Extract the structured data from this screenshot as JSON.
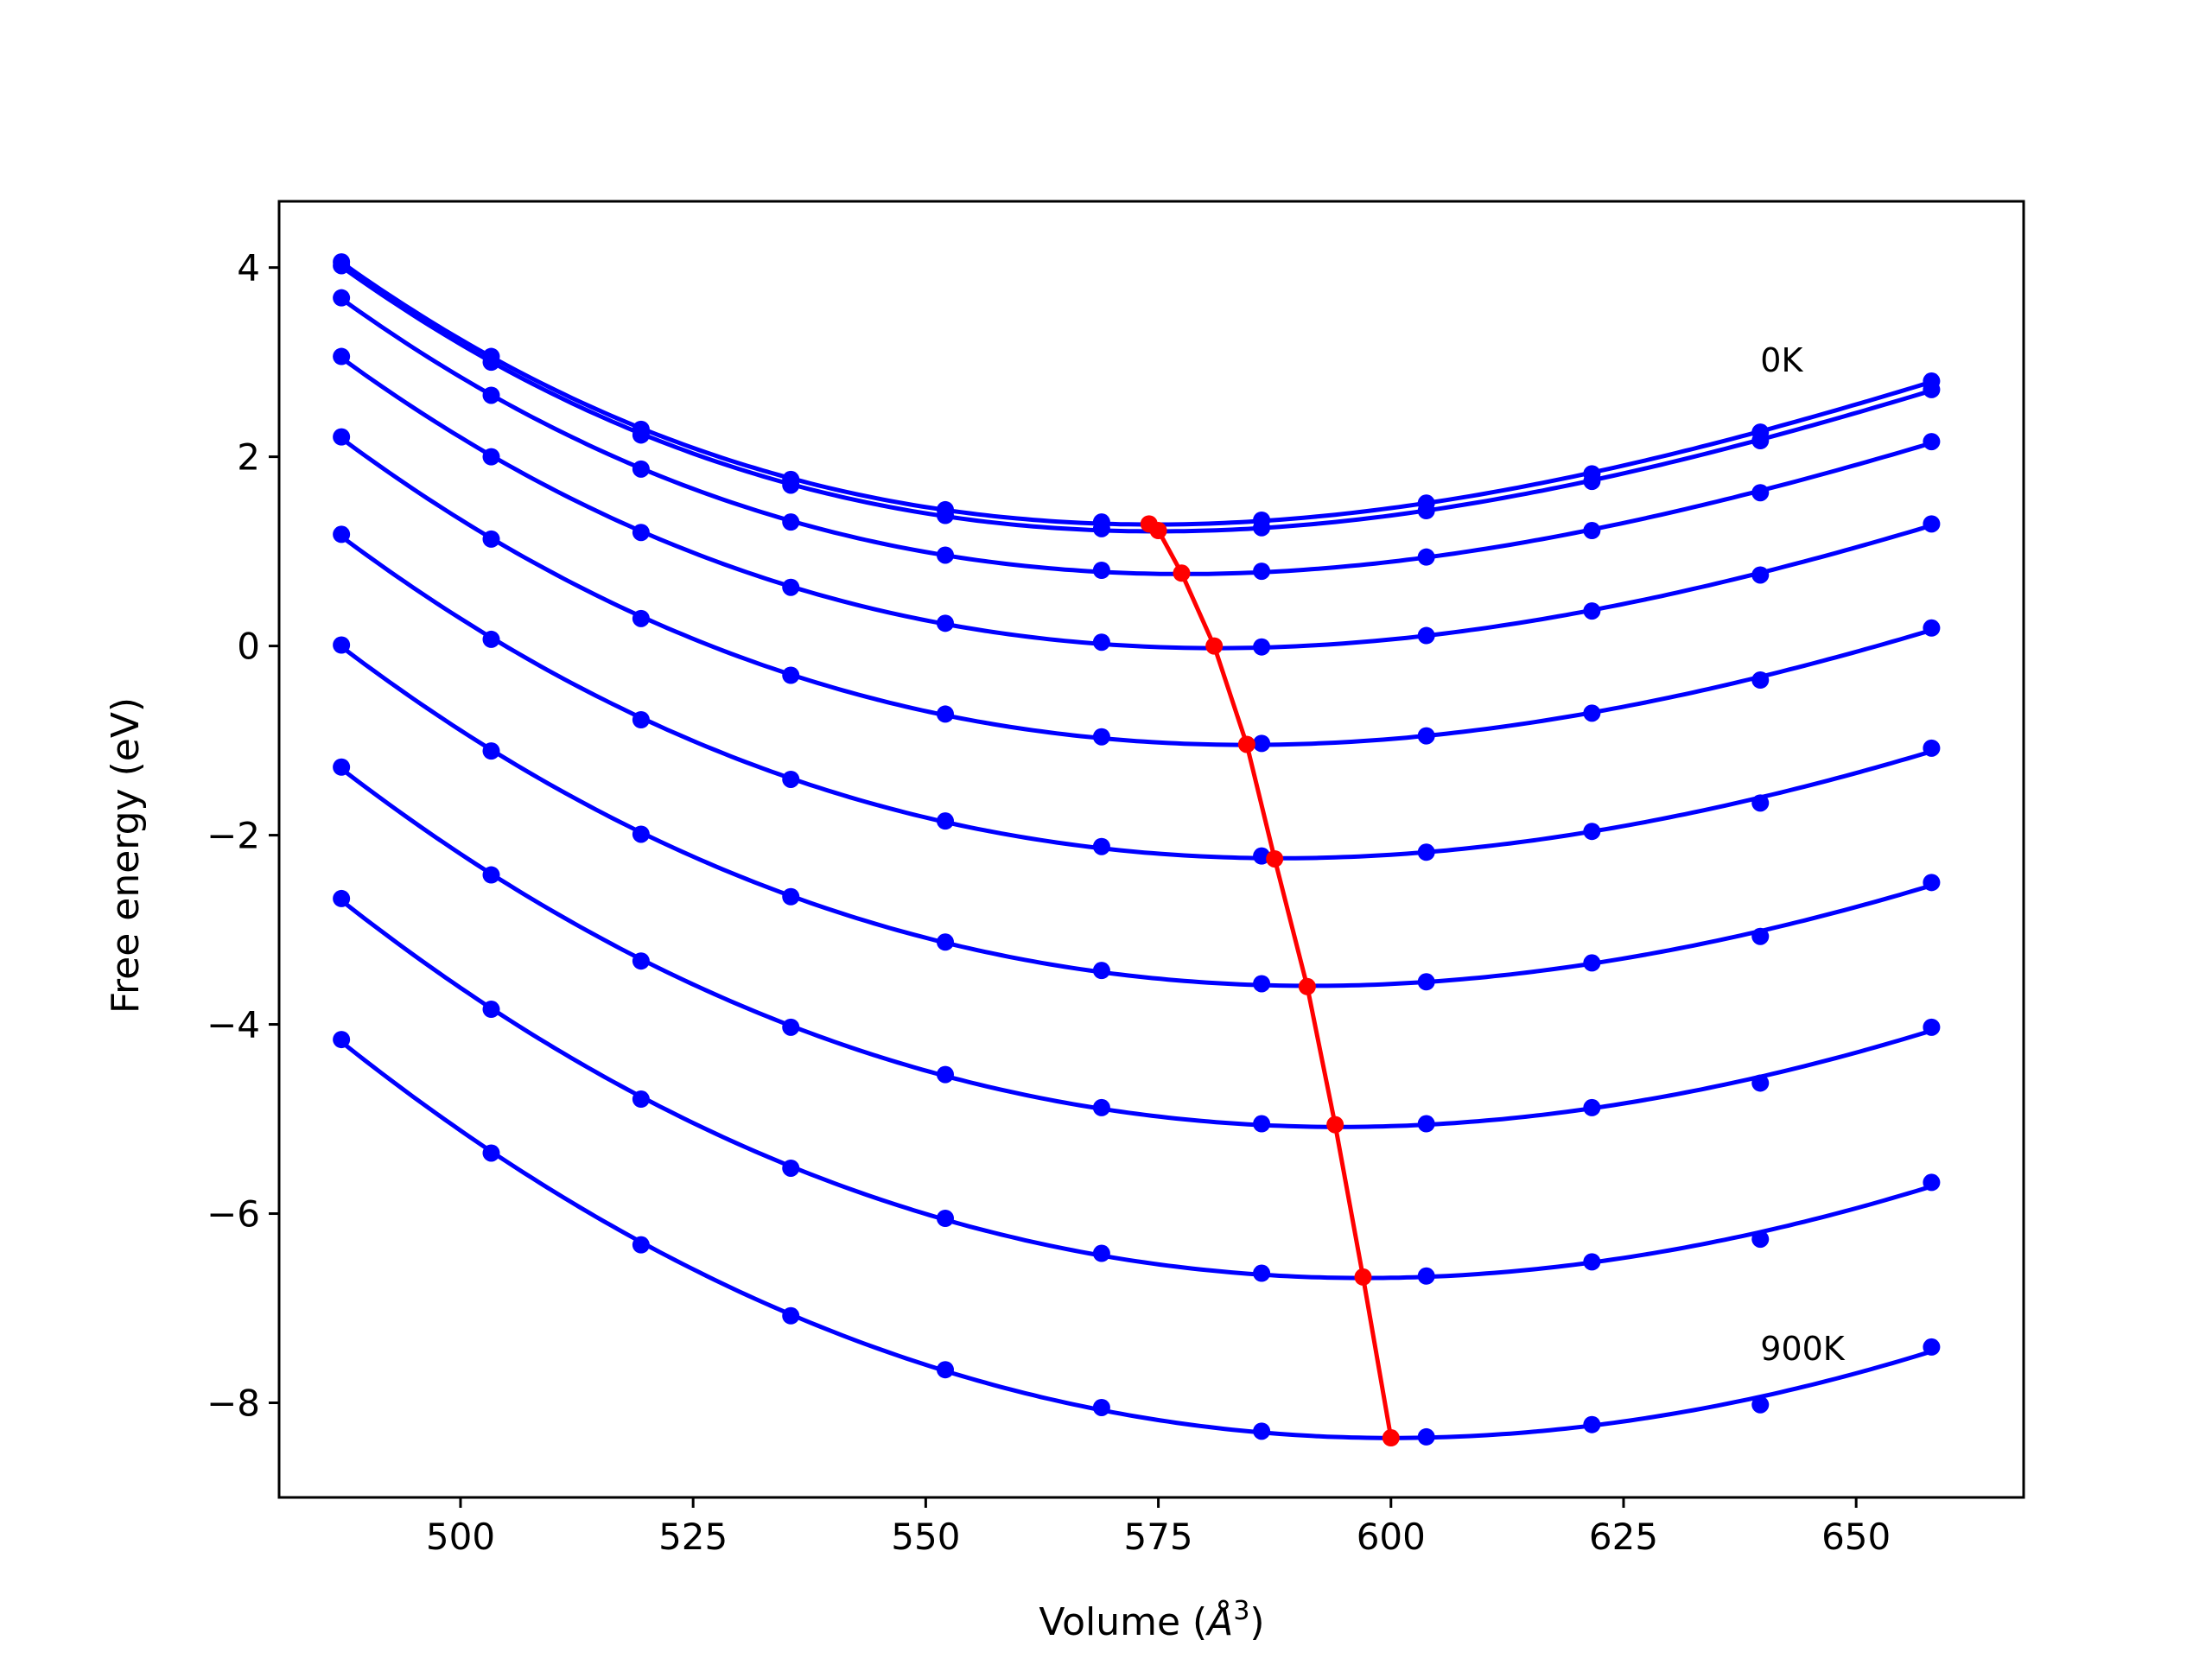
{
  "chart_data": {
    "type": "line",
    "xlabel": "Volume (Å³)",
    "xlabel_base": "Volume (",
    "xlabel_unit": "Å",
    "xlabel_exp": "3",
    "xlabel_close": ")",
    "ylabel": "Free energy (eV)",
    "xlim": [
      480.5,
      668
    ],
    "ylim": [
      -9,
      4.7
    ],
    "xticks": [
      500,
      525,
      550,
      575,
      600,
      625,
      650
    ],
    "yticks": [
      -8,
      -6,
      -4,
      -2,
      0,
      2,
      4
    ],
    "ytick_labels": [
      "−8",
      "−6",
      "−4",
      "−2",
      "0",
      "2",
      "4"
    ],
    "grid": false,
    "legend": "none",
    "annotations": [
      {
        "text": "0K",
        "x": 639.7,
        "y": 2.9
      },
      {
        "text": "900K",
        "x": 639.7,
        "y": -7.55
      }
    ],
    "colors": {
      "curves": "#0000ff",
      "equilibrium": "#ff0000",
      "axes": "#000000"
    },
    "volumes": [
      487.2,
      503.3,
      519.4,
      535.5,
      552.1,
      568.9,
      586.1,
      603.8,
      621.6,
      639.7,
      658.1
    ],
    "series": [
      {
        "values": [
          4.06,
          3.06,
          2.29,
          1.76,
          1.44,
          1.31,
          1.33,
          1.51,
          1.82,
          2.26,
          2.8
        ]
      },
      {
        "values": [
          4.02,
          3.0,
          2.23,
          1.7,
          1.38,
          1.24,
          1.25,
          1.43,
          1.74,
          2.17,
          2.71
        ]
      },
      {
        "values": [
          3.68,
          2.65,
          1.87,
          1.31,
          0.96,
          0.8,
          0.79,
          0.94,
          1.22,
          1.62,
          2.16
        ]
      },
      {
        "values": [
          3.06,
          2.0,
          1.2,
          0.62,
          0.24,
          0.04,
          -0.01,
          0.11,
          0.37,
          0.75,
          1.29
        ]
      },
      {
        "values": [
          2.21,
          1.13,
          0.29,
          -0.31,
          -0.72,
          -0.96,
          -1.03,
          -0.95,
          -0.71,
          -0.36,
          0.19
        ]
      },
      {
        "values": [
          1.18,
          0.07,
          -0.78,
          -1.41,
          -1.85,
          -2.12,
          -2.22,
          -2.18,
          -1.96,
          -1.66,
          -1.08
        ]
      },
      {
        "values": [
          0.01,
          -1.11,
          -1.99,
          -2.65,
          -3.13,
          -3.43,
          -3.57,
          -3.55,
          -3.35,
          -3.07,
          -2.5
        ]
      },
      {
        "values": [
          -1.28,
          -2.42,
          -3.33,
          -4.03,
          -4.53,
          -4.88,
          -5.05,
          -5.05,
          -4.88,
          -4.62,
          -4.03
        ]
      },
      {
        "values": [
          -2.67,
          -3.84,
          -4.79,
          -5.52,
          -6.05,
          -6.42,
          -6.63,
          -6.66,
          -6.51,
          -6.27,
          -5.67
        ]
      },
      {
        "values": [
          -4.16,
          -5.36,
          -6.33,
          -7.08,
          -7.65,
          -8.05,
          -8.3,
          -8.36,
          -8.23,
          -8.02,
          -7.41
        ]
      }
    ],
    "equilibrium": {
      "x": [
        574.0,
        575.0,
        577.5,
        581.0,
        584.5,
        587.5,
        591.0,
        594.0,
        597.0,
        600.0
      ],
      "y": [
        1.29,
        1.22,
        0.77,
        0.0,
        -1.04,
        -2.25,
        -3.6,
        -5.06,
        -6.67,
        -8.37
      ]
    }
  }
}
